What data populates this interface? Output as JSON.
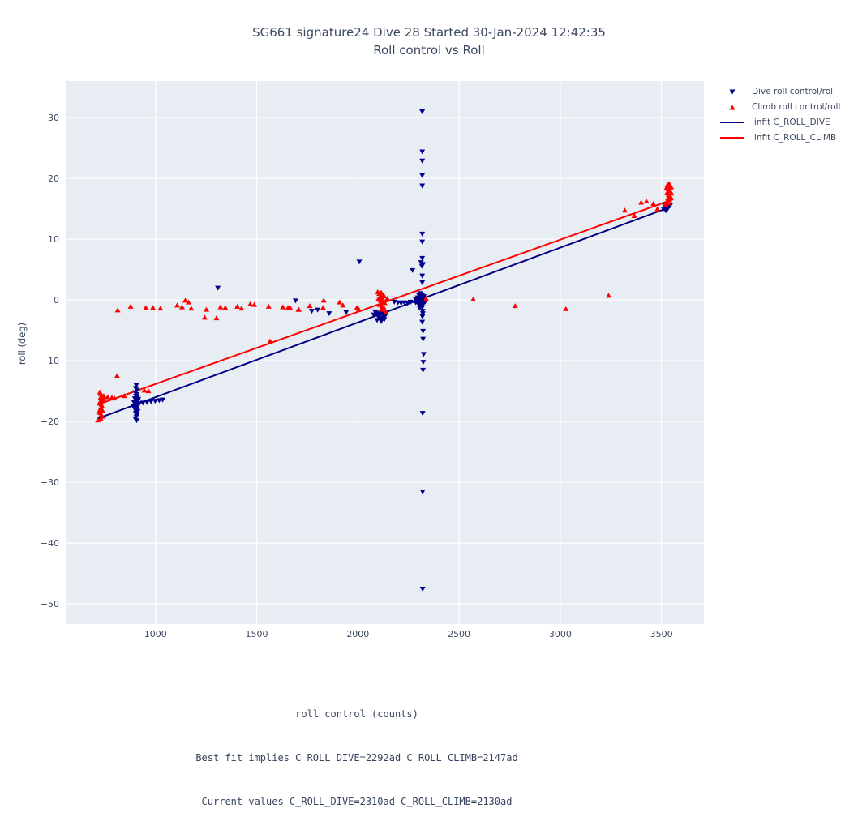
{
  "colors": {
    "dive_marker": "#00008b",
    "climb_marker": "#ff0000",
    "dive_line": "#000080",
    "climb_line": "#ff0000",
    "plot_bg": "#e8edf4",
    "grid": "#ffffff",
    "text": "#3b4960"
  },
  "chart_data": {
    "type": "scatter",
    "title": "SG661 signature24 Dive 28 Started 30-Jan-2024 12:42:35",
    "subtitle": "Roll control vs Roll",
    "xlabel": "roll control (counts)",
    "ylabel": "roll (deg)",
    "annotations": [
      "Best fit implies C_ROLL_DIVE=2292ad C_ROLL_CLIMB=2147ad",
      "Current values C_ROLL_DIVE=2310ad C_ROLL_CLIMB=2130ad"
    ],
    "xlim": [
      560,
      3710
    ],
    "ylim": [
      -53.3,
      36
    ],
    "xticks": [
      1000,
      1500,
      2000,
      2500,
      3000,
      3500
    ],
    "yticks": [
      30,
      20,
      10,
      0,
      -10,
      -20,
      -30,
      -40,
      -50
    ],
    "grid": true,
    "legend_position": "outside-top-right",
    "series": [
      {
        "name": "Dive roll control/roll",
        "type": "scatter",
        "marker": "triangle-down",
        "color": "#00008b",
        "points": [
          [
            2318,
            31.0
          ],
          [
            2318,
            24.4
          ],
          [
            2318,
            22.9
          ],
          [
            2318,
            20.5
          ],
          [
            2318,
            18.8
          ],
          [
            2318,
            10.9
          ],
          [
            2318,
            9.6
          ],
          [
            2318,
            6.9
          ],
          [
            2312,
            6.2
          ],
          [
            2322,
            5.9
          ],
          [
            2316,
            5.6
          ],
          [
            2270,
            4.9
          ],
          [
            2318,
            4.0
          ],
          [
            2318,
            2.9
          ],
          [
            2300,
            0.9
          ],
          [
            2310,
            1.1
          ],
          [
            2318,
            0.8
          ],
          [
            2326,
            0.6
          ],
          [
            2296,
            0.4
          ],
          [
            2304,
            0.3
          ],
          [
            2312,
            0.2
          ],
          [
            2320,
            0.1
          ],
          [
            2328,
            0.3
          ],
          [
            2292,
            -0.1
          ],
          [
            2300,
            -0.2
          ],
          [
            2308,
            -0.3
          ],
          [
            2316,
            -0.2
          ],
          [
            2324,
            -0.1
          ],
          [
            2332,
            -0.3
          ],
          [
            2298,
            -0.6
          ],
          [
            2306,
            -0.7
          ],
          [
            2314,
            -0.8
          ],
          [
            2322,
            -0.7
          ],
          [
            2310,
            -1.0
          ],
          [
            2318,
            -1.2
          ],
          [
            2305,
            -1.3
          ],
          [
            2313,
            0.5
          ],
          [
            2321,
            0.4
          ],
          [
            2315,
            0.0
          ],
          [
            2310,
            -0.5
          ],
          [
            2284,
            0.2
          ],
          [
            2286,
            -0.4
          ],
          [
            2180,
            -0.3
          ],
          [
            2198,
            -0.4
          ],
          [
            2214,
            -0.5
          ],
          [
            2230,
            -0.4
          ],
          [
            2246,
            -0.5
          ],
          [
            2260,
            -0.3
          ],
          [
            2320,
            -1.8
          ],
          [
            2321,
            -2.2
          ],
          [
            2319,
            -2.7
          ],
          [
            2318,
            -3.6
          ],
          [
            2322,
            -5.1
          ],
          [
            2322,
            -6.4
          ],
          [
            2325,
            -8.9
          ],
          [
            2323,
            -10.2
          ],
          [
            2322,
            -11.5
          ],
          [
            2320,
            -18.6
          ],
          [
            2320,
            -31.5
          ],
          [
            2320,
            -47.5
          ],
          [
            905,
            -14.0
          ],
          [
            902,
            -14.5
          ],
          [
            908,
            -14.8
          ],
          [
            900,
            -15.2
          ],
          [
            906,
            -15.5
          ],
          [
            903,
            -15.8
          ],
          [
            910,
            -16.0
          ],
          [
            898,
            -16.2
          ],
          [
            905,
            -16.4
          ],
          [
            912,
            -16.6
          ],
          [
            900,
            -16.9
          ],
          [
            907,
            -17.1
          ],
          [
            903,
            -17.4
          ],
          [
            910,
            -17.6
          ],
          [
            897,
            -17.9
          ],
          [
            905,
            -18.1
          ],
          [
            912,
            -18.3
          ],
          [
            902,
            -18.6
          ],
          [
            908,
            -18.9
          ],
          [
            905,
            -19.2
          ],
          [
            900,
            -19.5
          ],
          [
            907,
            -19.8
          ],
          [
            915,
            -16.3
          ],
          [
            893,
            -16.8
          ],
          [
            918,
            -17.0
          ],
          [
            890,
            -17.5
          ],
          [
            938,
            -16.9
          ],
          [
            958,
            -16.8
          ],
          [
            978,
            -16.7
          ],
          [
            998,
            -16.6
          ],
          [
            1018,
            -16.5
          ],
          [
            1035,
            -16.4
          ],
          [
            1308,
            2.0
          ],
          [
            1692,
            -0.1
          ],
          [
            1772,
            -1.8
          ],
          [
            1801,
            -1.6
          ],
          [
            1858,
            -2.2
          ],
          [
            1942,
            -2.0
          ],
          [
            2007,
            6.3
          ],
          [
            2085,
            -1.9
          ],
          [
            2095,
            -2.1
          ],
          [
            2105,
            -2.3
          ],
          [
            2115,
            -2.2
          ],
          [
            2125,
            -2.4
          ],
          [
            2135,
            -2.6
          ],
          [
            2100,
            -2.7
          ],
          [
            2110,
            -2.9
          ],
          [
            2120,
            -3.0
          ],
          [
            2130,
            -3.2
          ],
          [
            2095,
            -3.3
          ],
          [
            2115,
            -3.5
          ],
          [
            2140,
            -2.1
          ],
          [
            2078,
            -2.4
          ],
          [
            3510,
            15.0
          ],
          [
            3518,
            15.2
          ],
          [
            3525,
            15.4
          ],
          [
            3532,
            15.1
          ],
          [
            3540,
            15.5
          ],
          [
            3515,
            15.7
          ],
          [
            3528,
            14.9
          ],
          [
            3536,
            15.3
          ],
          [
            3522,
            14.7
          ],
          [
            3544,
            15.6
          ]
        ]
      },
      {
        "name": "Climb roll control/roll",
        "type": "scatter",
        "marker": "triangle-up",
        "color": "#ff0000",
        "points": [
          [
            725,
            -15.2
          ],
          [
            730,
            -15.5
          ],
          [
            735,
            -15.8
          ],
          [
            728,
            -16.1
          ],
          [
            733,
            -16.4
          ],
          [
            738,
            -16.6
          ],
          [
            726,
            -16.9
          ],
          [
            731,
            -17.2
          ],
          [
            736,
            -17.5
          ],
          [
            729,
            -17.8
          ],
          [
            734,
            -18.0
          ],
          [
            739,
            -18.3
          ],
          [
            727,
            -18.6
          ],
          [
            732,
            -18.9
          ],
          [
            737,
            -19.2
          ],
          [
            730,
            -19.6
          ],
          [
            722,
            -17.0
          ],
          [
            742,
            -16.3
          ],
          [
            720,
            -18.4
          ],
          [
            715,
            -19.8
          ],
          [
            744,
            -15.8
          ],
          [
            764,
            -16.0
          ],
          [
            784,
            -16.1
          ],
          [
            797,
            -16.2
          ],
          [
            845,
            -15.8
          ],
          [
            945,
            -14.9
          ],
          [
            965,
            -15.0
          ],
          [
            810,
            -12.5
          ],
          [
            813,
            -1.7
          ],
          [
            877,
            -1.1
          ],
          [
            952,
            -1.3
          ],
          [
            987,
            -1.3
          ],
          [
            1024,
            -1.4
          ],
          [
            1107,
            -0.9
          ],
          [
            1131,
            -1.2
          ],
          [
            1147,
            -0.1
          ],
          [
            1163,
            -0.4
          ],
          [
            1176,
            -1.4
          ],
          [
            1243,
            -2.9
          ],
          [
            1251,
            -1.6
          ],
          [
            1301,
            -3.0
          ],
          [
            1321,
            -1.2
          ],
          [
            1345,
            -1.3
          ],
          [
            1404,
            -1.1
          ],
          [
            1425,
            -1.4
          ],
          [
            1468,
            -0.7
          ],
          [
            1488,
            -0.8
          ],
          [
            1559,
            -1.1
          ],
          [
            1566,
            -6.8
          ],
          [
            1629,
            -1.2
          ],
          [
            1655,
            -1.3
          ],
          [
            1665,
            -1.3
          ],
          [
            1706,
            -1.6
          ],
          [
            1708,
            -1.6
          ],
          [
            1762,
            -1.0
          ],
          [
            1828,
            -1.3
          ],
          [
            1831,
            -0.1
          ],
          [
            1910,
            -0.4
          ],
          [
            1926,
            -0.9
          ],
          [
            1995,
            -1.3
          ],
          [
            2005,
            -1.6
          ],
          [
            2105,
            1.0
          ],
          [
            2115,
            1.2
          ],
          [
            2125,
            0.8
          ],
          [
            2110,
            0.5
          ],
          [
            2120,
            0.3
          ],
          [
            2130,
            0.6
          ],
          [
            2100,
            0.1
          ],
          [
            2112,
            -0.1
          ],
          [
            2122,
            -0.3
          ],
          [
            2132,
            -0.5
          ],
          [
            2108,
            -0.8
          ],
          [
            2118,
            -1.0
          ],
          [
            2128,
            -1.3
          ],
          [
            2115,
            -1.6
          ],
          [
            2138,
            -2.0
          ],
          [
            2145,
            0.2
          ],
          [
            2098,
            1.3
          ],
          [
            2337,
            0.2
          ],
          [
            2570,
            0.1
          ],
          [
            2777,
            -1.0
          ],
          [
            3028,
            -1.5
          ],
          [
            3239,
            0.7
          ],
          [
            3319,
            14.7
          ],
          [
            3366,
            13.8
          ],
          [
            3400,
            16.0
          ],
          [
            3426,
            16.2
          ],
          [
            3460,
            15.8
          ],
          [
            3480,
            14.9
          ],
          [
            3530,
            18.9
          ],
          [
            3538,
            19.1
          ],
          [
            3545,
            18.7
          ],
          [
            3525,
            18.4
          ],
          [
            3535,
            18.2
          ],
          [
            3542,
            17.9
          ],
          [
            3528,
            17.6
          ],
          [
            3536,
            17.3
          ],
          [
            3544,
            17.0
          ],
          [
            3532,
            16.7
          ],
          [
            3540,
            16.4
          ],
          [
            3526,
            16.1
          ],
          [
            3534,
            15.9
          ],
          [
            3548,
            18.5
          ],
          [
            3520,
            15.7
          ],
          [
            3550,
            17.5
          ]
        ]
      },
      {
        "name": "linfit C_ROLL_DIVE",
        "type": "line",
        "marker": "line",
        "color": "#000080",
        "points": [
          [
            715,
            -19.5
          ],
          [
            3545,
            15.3
          ]
        ]
      },
      {
        "name": "linfit C_ROLL_CLIMB",
        "type": "line",
        "marker": "line",
        "color": "#ff0000",
        "points": [
          [
            715,
            -17.2
          ],
          [
            3555,
            16.5
          ]
        ]
      }
    ]
  }
}
